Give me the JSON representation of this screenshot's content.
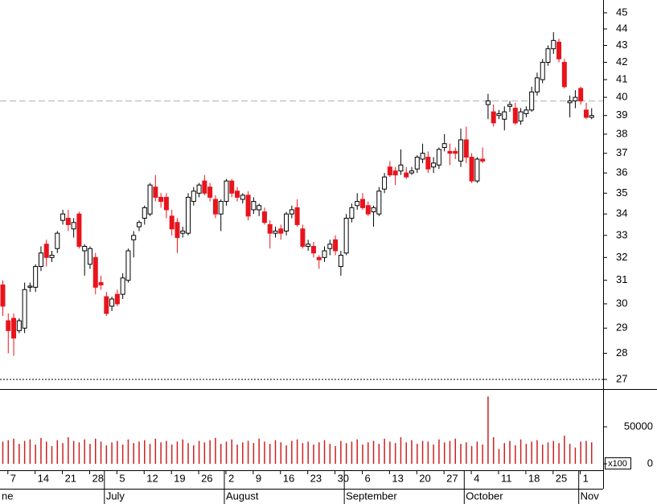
{
  "chart_data": {
    "type": "candlestick",
    "log_scale": true,
    "categories": [
      null,
      "7",
      null,
      null,
      null,
      null,
      "14",
      null,
      null,
      null,
      null,
      "21",
      null,
      null,
      null,
      null,
      "28",
      null,
      null,
      null,
      null,
      "5",
      null,
      null,
      null,
      null,
      "12",
      null,
      null,
      null,
      null,
      "19",
      null,
      null,
      null,
      null,
      "26",
      null,
      null,
      null,
      null,
      "2",
      null,
      null,
      null,
      null,
      "9",
      null,
      null,
      null,
      null,
      "16",
      null,
      null,
      null,
      null,
      "23",
      null,
      null,
      null,
      null,
      "30",
      null,
      null,
      null,
      null,
      "6",
      null,
      null,
      null,
      null,
      "13",
      null,
      null,
      null,
      null,
      "20",
      null,
      null,
      null,
      null,
      "27",
      null,
      null,
      null,
      null,
      "4",
      null,
      null,
      null,
      null,
      "11",
      null,
      null,
      null,
      null,
      "18",
      null,
      null,
      null,
      null,
      "25",
      null,
      null,
      null,
      null,
      "1",
      null,
      null
    ],
    "months": [
      {
        "label": "ne",
        "index": 0
      },
      {
        "label": "July",
        "index": 19
      },
      {
        "label": "August",
        "index": 41
      },
      {
        "label": "September",
        "index": 63
      },
      {
        "label": "October",
        "index": 85
      },
      {
        "label": "Nov",
        "index": 106
      }
    ],
    "open": [
      30.8,
      29.3,
      29.4,
      28.9,
      29.0,
      30.7,
      30.7,
      31.6,
      32.6,
      32.0,
      32.4,
      33.7,
      33.8,
      33.3,
      34.0,
      32.3,
      31.7,
      32.0,
      30.9,
      30.3,
      29.9,
      30.4,
      30.4,
      31.0,
      32.8,
      33.4,
      33.8,
      34.0,
      35.3,
      34.8,
      34.8,
      33.9,
      33.6,
      33.1,
      33.1,
      34.6,
      35.0,
      35.6,
      35.3,
      34.7,
      34.0,
      34.6,
      35.6,
      35.1,
      34.7,
      34.9,
      34.2,
      34.2,
      34.1,
      33.5,
      33.1,
      33.3,
      33.2,
      34.0,
      34.3,
      33.3,
      32.5,
      32.5,
      32.0,
      32.0,
      32.4,
      32.8,
      31.6,
      32.2,
      33.8,
      34.4,
      34.7,
      34.4,
      34.1,
      34.0,
      35.2,
      36.3,
      36.1,
      36.1,
      36.0,
      36.0,
      36.2,
      36.7,
      36.8,
      36.3,
      36.4,
      37.3,
      37.1,
      37.1,
      36.6,
      37.7,
      36.8,
      35.6,
      36.7,
      39.6,
      39.2,
      39.0,
      38.8,
      39.5,
      39.4,
      38.7,
      39.1,
      39.3,
      40.3,
      41.0,
      42.0,
      42.8,
      43.2,
      42.0,
      39.7,
      39.8,
      40.5,
      39.3,
      38.9
    ],
    "high": [
      31.0,
      29.6,
      29.6,
      29.4,
      30.9,
      30.9,
      31.7,
      32.5,
      32.8,
      32.3,
      33.2,
      34.2,
      34.2,
      33.8,
      34.1,
      32.6,
      32.5,
      32.2,
      31.2,
      30.5,
      30.3,
      30.6,
      31.3,
      32.4,
      33.2,
      33.7,
      34.4,
      35.5,
      35.9,
      35.0,
      35.0,
      34.2,
      33.8,
      33.4,
      35.0,
      35.3,
      35.5,
      35.9,
      35.5,
      34.9,
      34.7,
      35.7,
      35.7,
      35.3,
      35.0,
      35.1,
      34.8,
      34.5,
      34.3,
      33.7,
      33.4,
      33.5,
      34.1,
      34.4,
      34.7,
      33.5,
      32.8,
      32.7,
      32.1,
      32.5,
      32.8,
      33.0,
      32.3,
      34.0,
      34.5,
      35.0,
      35.0,
      34.6,
      34.4,
      35.3,
      36.0,
      36.6,
      36.3,
      37.2,
      36.3,
      36.3,
      36.9,
      37.5,
      37.1,
      36.8,
      37.3,
      38.0,
      37.5,
      37.3,
      38.3,
      38.4,
      37.0,
      36.8,
      37.3,
      40.2,
      39.6,
      39.3,
      39.5,
      39.8,
      39.7,
      39.4,
      39.5,
      40.6,
      41.4,
      42.2,
      43.0,
      43.8,
      43.4,
      42.2,
      40.1,
      40.4,
      40.6,
      39.7,
      39.4
    ],
    "low": [
      29.5,
      28.0,
      27.9,
      28.8,
      28.8,
      30.5,
      30.5,
      31.4,
      31.6,
      31.8,
      32.2,
      33.5,
      33.2,
      32.9,
      32.4,
      31.2,
      31.5,
      30.4,
      30.6,
      29.5,
      29.7,
      29.9,
      30.2,
      30.9,
      32.0,
      33.2,
      33.5,
      33.9,
      34.6,
      34.3,
      33.8,
      33.0,
      32.2,
      32.9,
      33.0,
      34.4,
      34.8,
      34.9,
      34.6,
      33.8,
      33.2,
      34.4,
      34.8,
      34.6,
      34.5,
      33.7,
      34.0,
      33.9,
      33.5,
      32.4,
      32.9,
      32.8,
      33.0,
      33.8,
      33.4,
      32.4,
      32.3,
      32.0,
      31.5,
      31.8,
      32.1,
      32.1,
      31.2,
      32.1,
      33.6,
      34.2,
      34.2,
      33.9,
      33.4,
      33.9,
      35.0,
      35.8,
      35.4,
      35.9,
      35.7,
      35.9,
      36.0,
      36.5,
      36.0,
      36.0,
      36.2,
      37.1,
      36.4,
      36.7,
      36.3,
      36.5,
      35.5,
      35.5,
      36.5,
      38.8,
      38.4,
      38.8,
      38.2,
      39.2,
      38.5,
      38.5,
      38.9,
      39.2,
      40.1,
      40.8,
      41.8,
      42.5,
      42.0,
      40.5,
      38.9,
      39.4,
      39.6,
      38.8,
      38.8
    ],
    "close": [
      29.9,
      28.9,
      28.6,
      29.3,
      30.6,
      30.75,
      31.6,
      32.2,
      32.0,
      32.1,
      33.1,
      34.0,
      33.5,
      33.6,
      32.5,
      32.5,
      32.4,
      30.7,
      30.8,
      29.6,
      30.2,
      30.0,
      31.1,
      32.3,
      33.0,
      33.6,
      34.3,
      35.4,
      34.8,
      34.6,
      34.2,
      33.3,
      32.9,
      33.2,
      34.8,
      35.1,
      35.4,
      35.0,
      34.8,
      34.0,
      34.6,
      35.6,
      35.0,
      34.8,
      34.9,
      33.9,
      34.6,
      34.4,
      33.6,
      33.1,
      33.2,
      33.1,
      34.0,
      34.2,
      33.5,
      32.5,
      32.6,
      32.2,
      31.9,
      32.3,
      32.6,
      32.3,
      32.1,
      33.8,
      34.3,
      34.6,
      34.3,
      34.0,
      34.3,
      35.1,
      35.8,
      35.9,
      35.9,
      36.4,
      35.8,
      36.1,
      36.8,
      37.0,
      36.2,
      36.5,
      37.2,
      37.5,
      37.0,
      37.0,
      37.7,
      36.8,
      35.6,
      36.7,
      36.6,
      39.8,
      38.6,
      39.1,
      39.2,
      39.6,
      38.6,
      39.2,
      39.3,
      40.3,
      41.1,
      42.0,
      42.8,
      43.3,
      42.2,
      40.6,
      39.8,
      40.0,
      39.8,
      38.9,
      39.0
    ],
    "volume": [
      30000,
      32000,
      34000,
      27000,
      31000,
      33000,
      26000,
      35000,
      30000,
      24000,
      32000,
      28000,
      36000,
      31000,
      29000,
      33000,
      27000,
      34000,
      30000,
      25000,
      29000,
      31000,
      26000,
      33000,
      28000,
      30000,
      32000,
      27000,
      34000,
      29000,
      31000,
      26000,
      30000,
      33000,
      28000,
      25000,
      31000,
      29000,
      32000,
      35000,
      27000,
      30000,
      33000,
      26000,
      29000,
      31000,
      28000,
      34000,
      30000,
      27000,
      32000,
      29000,
      25000,
      31000,
      33000,
      28000,
      30000,
      26000,
      29000,
      32000,
      27000,
      24000,
      31000,
      28000,
      30000,
      33000,
      26000,
      29000,
      31000,
      27000,
      34000,
      30000,
      28000,
      36000,
      29000,
      32000,
      27000,
      31000,
      30000,
      26000,
      33000,
      29000,
      31000,
      34000,
      27000,
      29000,
      24000,
      30000,
      26000,
      91000,
      36000,
      20000,
      28000,
      31000,
      25000,
      33000,
      27000,
      30000,
      32000,
      26000,
      29000,
      31000,
      28000,
      38000,
      27000,
      22000,
      30000,
      31000,
      29000
    ],
    "up_color": "#ffffff",
    "down_color": "#e8141c",
    "volume_color": "#cc2020",
    "ylim": [
      26.64,
      45.81
    ],
    "yticks": [
      27,
      28,
      29,
      30,
      31,
      32,
      33,
      34,
      35,
      36,
      37,
      38,
      39,
      40,
      41,
      42,
      43,
      44,
      45
    ],
    "volume_ylim": [
      0,
      98900
    ],
    "volume_yticks": [
      0,
      50000
    ],
    "volume_unit": "x100",
    "reference_lines": [
      {
        "value": 39.8,
        "style": "dashed"
      },
      {
        "value": 27,
        "style": "dotted"
      }
    ]
  }
}
